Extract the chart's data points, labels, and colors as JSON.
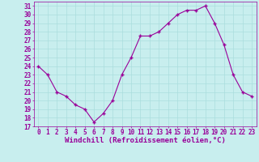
{
  "x": [
    0,
    1,
    2,
    3,
    4,
    5,
    6,
    7,
    8,
    9,
    10,
    11,
    12,
    13,
    14,
    15,
    16,
    17,
    18,
    19,
    20,
    21,
    22,
    23
  ],
  "y": [
    24,
    23,
    21,
    20.5,
    19.5,
    19,
    17.5,
    18.5,
    20,
    23,
    25,
    27.5,
    27.5,
    28,
    29,
    30,
    30.5,
    30.5,
    31,
    29,
    26.5,
    23,
    21,
    20.5
  ],
  "line_color": "#990099",
  "marker": "+",
  "marker_color": "#990099",
  "bg_color": "#c8eeee",
  "grid_color": "#aadddd",
  "xlabel": "Windchill (Refroidissement éolien,°C)",
  "xlabel_color": "#990099",
  "yticks": [
    17,
    18,
    19,
    20,
    21,
    22,
    23,
    24,
    25,
    26,
    27,
    28,
    29,
    30,
    31
  ],
  "xticks": [
    0,
    1,
    2,
    3,
    4,
    5,
    6,
    7,
    8,
    9,
    10,
    11,
    12,
    13,
    14,
    15,
    16,
    17,
    18,
    19,
    20,
    21,
    22,
    23
  ],
  "ylim": [
    17,
    31.5
  ],
  "xlim": [
    -0.5,
    23.5
  ],
  "tick_color": "#990099",
  "tick_fontsize": 5.5,
  "xlabel_fontsize": 6.5,
  "spine_color": "#990099",
  "marker_size": 3.5,
  "linewidth": 0.8
}
